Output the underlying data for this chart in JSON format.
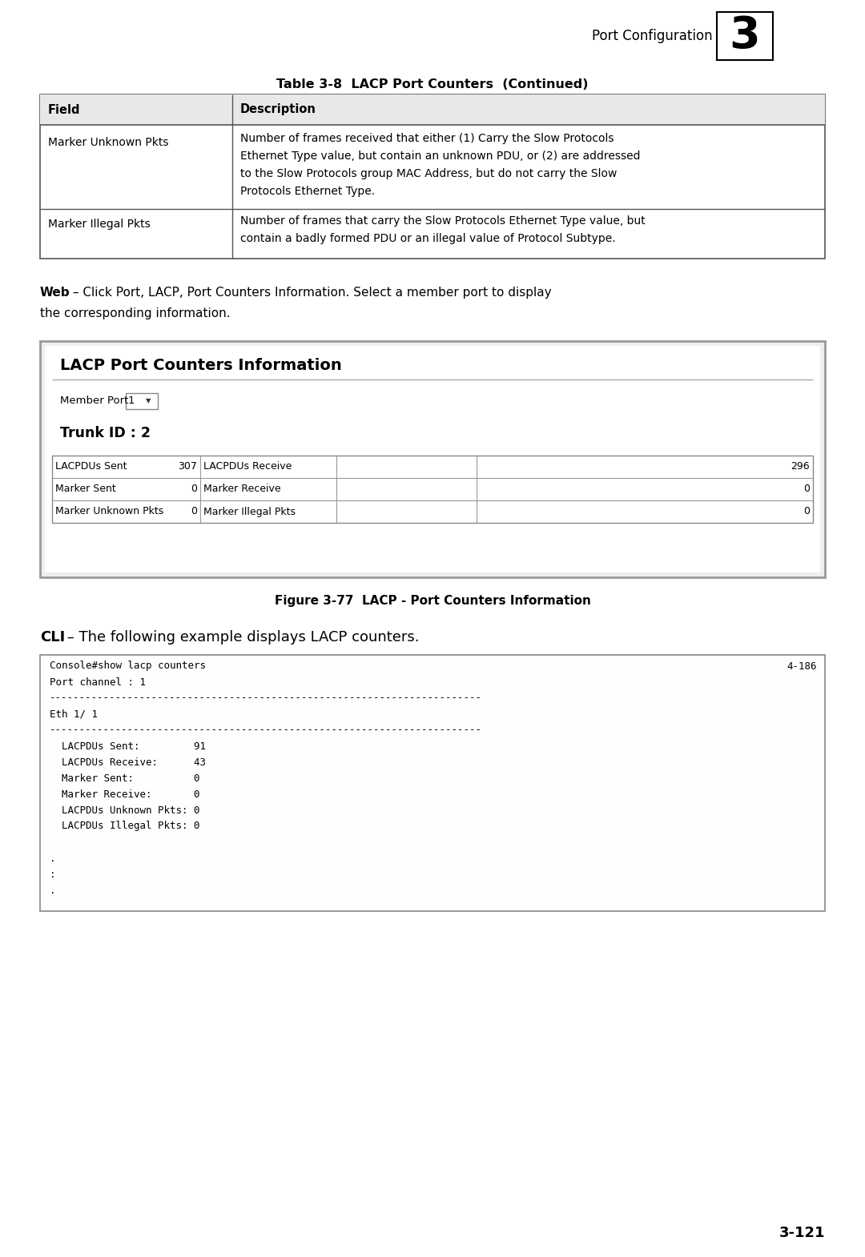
{
  "bg_color": "#ffffff",
  "page_number": "3-121",
  "chapter_number": "3",
  "chapter_title": "Port Configuration",
  "table_title": "Table 3-8  LACP Port Counters  (Continued)",
  "table_headers": [
    "Field",
    "Description"
  ],
  "table_row1_field": "Marker Unknown Pkts",
  "table_row1_desc_lines": [
    "Number of frames received that either (1) Carry the Slow Protocols",
    "Ethernet Type value, but contain an unknown PDU, or (2) are addressed",
    "to the Slow Protocols group MAC Address, but do not carry the Slow",
    "Protocols Ethernet Type."
  ],
  "table_row2_field": "Marker Illegal Pkts",
  "table_row2_desc_lines": [
    "Number of frames that carry the Slow Protocols Ethernet Type value, but",
    "contain a badly formed PDU or an illegal value of Protocol Subtype."
  ],
  "web_text_bold": "Web",
  "web_text_rest": " – Click Port, LACP, Port Counters Information. Select a member port to display",
  "web_text_line2": "the corresponding information.",
  "gui_title": "LACP Port Counters Information",
  "gui_member_port_label": "Member Port",
  "gui_member_port_value": "1",
  "gui_trunk_id": "Trunk ID : 2",
  "gui_table_rows": [
    [
      "LACPDUs Sent",
      "307",
      "LACPDUs Receive",
      "296"
    ],
    [
      "Marker Sent",
      "0",
      "Marker Receive",
      "0"
    ],
    [
      "Marker Unknown Pkts",
      "0",
      "Marker Illegal Pkts",
      "0"
    ]
  ],
  "figure_caption": "Figure 3-77  LACP - Port Counters Information",
  "cli_bold": "CLI",
  "cli_rest": " – The following example displays LACP counters.",
  "cli_lines": [
    [
      "Console#show lacp counters",
      "4-186"
    ],
    [
      "Port channel : 1",
      ""
    ],
    [
      "------------------------------------------------------------------------",
      ""
    ],
    [
      "Eth 1/ 1",
      ""
    ],
    [
      "------------------------------------------------------------------------",
      ""
    ],
    [
      "  LACPDUs Sent:         91",
      ""
    ],
    [
      "  LACPDUs Receive:      43",
      ""
    ],
    [
      "  Marker Sent:          0",
      ""
    ],
    [
      "  Marker Receive:       0",
      ""
    ],
    [
      "  LACPDUs Unknown Pkts: 0",
      ""
    ],
    [
      "  LACPDUs Illegal Pkts: 0",
      ""
    ],
    [
      "",
      ""
    ],
    [
      ".",
      ""
    ],
    [
      ":",
      ""
    ],
    [
      ".",
      ""
    ]
  ]
}
